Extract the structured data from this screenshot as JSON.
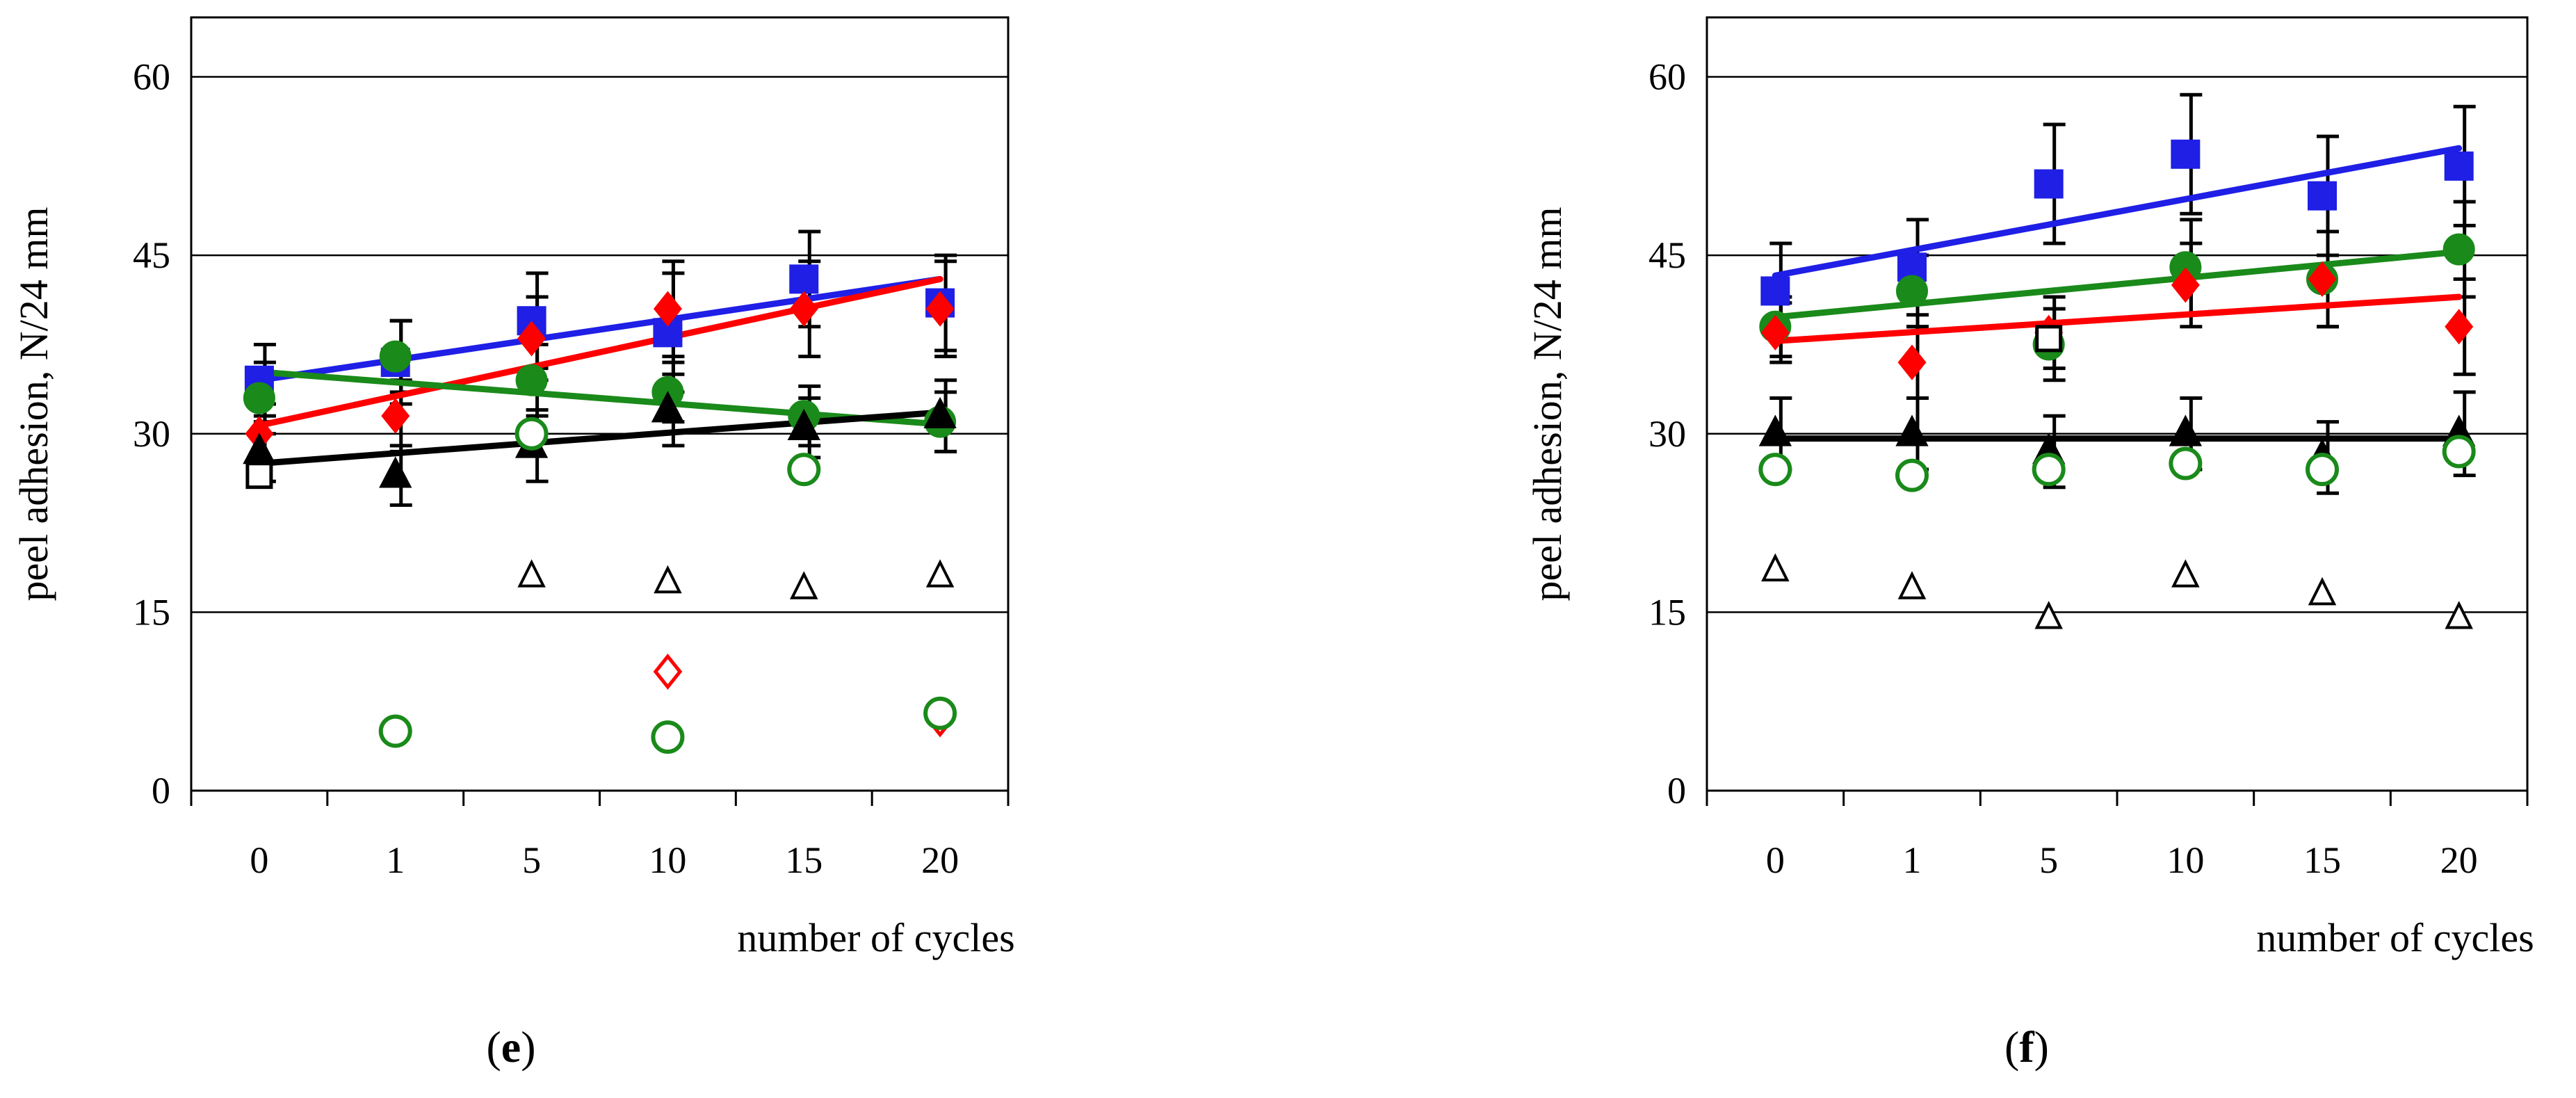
{
  "chart_data": [
    {
      "type": "scatter",
      "panel_label": "e",
      "xlabel": "number of cycles",
      "ylabel": "peel adhesion, N/24 mm",
      "ylim": [
        0,
        65
      ],
      "yticks": [
        0,
        15,
        30,
        45,
        60
      ],
      "categories": [
        "0",
        "1",
        "5",
        "10",
        "15",
        "20"
      ],
      "grid": "horizontal",
      "series": [
        {
          "name": "blue squares",
          "marker": "square-filled",
          "color": "#1f1fe6",
          "values": [
            34.5,
            36,
            39.5,
            38.5,
            43,
            41
          ],
          "errors": [
            3,
            3.5,
            4,
            5,
            4,
            4
          ],
          "trend": [
            34.5,
            43
          ]
        },
        {
          "name": "red diamonds",
          "marker": "diamond-filled",
          "color": "#ff0000",
          "values": [
            30,
            31.5,
            38,
            40.5,
            40.5,
            40.5
          ],
          "errors": [
            2.5,
            3,
            3.5,
            4,
            4,
            4
          ],
          "trend": [
            30.7,
            43
          ]
        },
        {
          "name": "green circles",
          "marker": "circle-filled",
          "color": "#1a8a1a",
          "values": [
            33,
            36.5,
            34.5,
            33.5,
            31.5,
            31
          ],
          "errors": [
            3,
            3,
            3,
            2.5,
            2.5,
            2.5
          ],
          "trend": [
            35.2,
            30.8
          ]
        },
        {
          "name": "black triangles",
          "marker": "triangle-filled",
          "color": "#000000",
          "values": [
            28.5,
            26.5,
            29,
            32,
            30.5,
            31.5
          ],
          "errors": [
            2.5,
            2.5,
            3,
            3,
            2.5,
            3
          ],
          "trend": [
            27.5,
            31.8
          ]
        },
        {
          "name": "open squares",
          "marker": "square-open",
          "color": "#000000",
          "values": [
            26.5,
            null,
            null,
            null,
            null,
            null
          ],
          "errors": [],
          "trend": null
        },
        {
          "name": "open triangles",
          "marker": "triangle-open",
          "color": "#000000",
          "values": [
            null,
            null,
            18,
            17.5,
            17,
            18
          ],
          "errors": [],
          "trend": null
        },
        {
          "name": "open diamonds",
          "marker": "diamond-open",
          "color": "#ff0000",
          "values": [
            null,
            null,
            null,
            10,
            null,
            6
          ],
          "errors": [],
          "trend": null
        },
        {
          "name": "open circles",
          "marker": "circle-open",
          "color": "#1a8a1a",
          "values": [
            null,
            5,
            30,
            4.5,
            27,
            6.5
          ],
          "errors": [],
          "trend": null
        }
      ]
    },
    {
      "type": "scatter",
      "panel_label": "f",
      "xlabel": "number of cycles",
      "ylabel": "peel adhesion, N/24 mm",
      "ylim": [
        0,
        65
      ],
      "yticks": [
        0,
        15,
        30,
        45,
        60
      ],
      "categories": [
        "0",
        "1",
        "5",
        "10",
        "15",
        "20"
      ],
      "grid": "horizontal",
      "series": [
        {
          "name": "blue squares",
          "marker": "square-filled",
          "color": "#1f1fe6",
          "values": [
            42,
            44,
            51,
            53.5,
            50,
            52.5
          ],
          "errors": [
            4,
            4,
            5,
            5,
            5,
            5
          ],
          "trend": [
            43.3,
            54
          ]
        },
        {
          "name": "green circles",
          "marker": "circle-filled",
          "color": "#1a8a1a",
          "values": [
            39,
            42,
            37.5,
            44,
            43,
            45.5
          ],
          "errors": [
            2.5,
            3,
            3,
            4,
            4,
            4
          ],
          "trend": [
            39.8,
            45.3
          ]
        },
        {
          "name": "red diamonds",
          "marker": "diamond-filled",
          "color": "#ff0000",
          "values": [
            38.5,
            36,
            38.5,
            42.5,
            43,
            39
          ],
          "errors": [
            2.5,
            3,
            3,
            3.5,
            4,
            4
          ],
          "trend": [
            37.8,
            41.5
          ]
        },
        {
          "name": "open squares",
          "marker": "square-open",
          "color": "#000000",
          "values": [
            null,
            null,
            38,
            null,
            null,
            null
          ],
          "errors": [],
          "trend": null
        },
        {
          "name": "black triangles",
          "marker": "triangle-filled",
          "color": "#000000",
          "values": [
            30,
            30,
            28.5,
            30,
            28,
            30
          ],
          "errors": [
            3,
            3,
            3,
            3,
            3,
            3.5
          ],
          "trend": [
            29.6,
            29.6
          ]
        },
        {
          "name": "open circles",
          "marker": "circle-open",
          "color": "#1a8a1a",
          "values": [
            27,
            26.5,
            27,
            27.5,
            27,
            28.5
          ],
          "errors": [],
          "trend": null
        },
        {
          "name": "open triangles",
          "marker": "triangle-open",
          "color": "#000000",
          "values": [
            18.5,
            17,
            14.5,
            18,
            16.5,
            14.5
          ],
          "errors": [],
          "trend": null
        }
      ]
    }
  ]
}
